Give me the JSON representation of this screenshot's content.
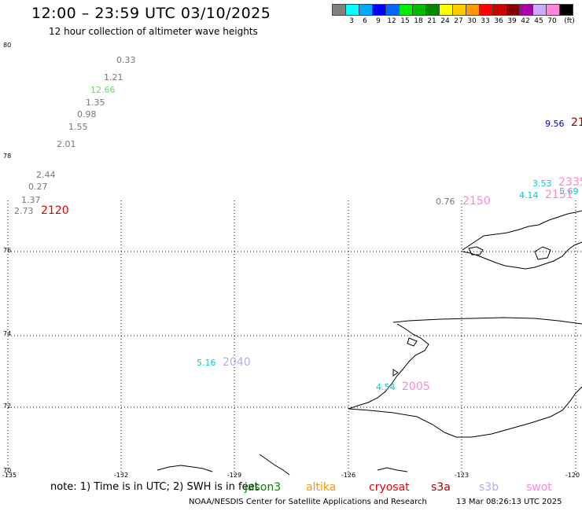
{
  "header": {
    "title": "12:00 – 23:59 UTC 03/10/2025",
    "subtitle": "12 hour collection of altimeter wave heights"
  },
  "colorbar": {
    "unit_label": "(ft)",
    "entries": [
      {
        "label": "",
        "color": "#808080"
      },
      {
        "label": "3",
        "color": "#00ffff"
      },
      {
        "label": "6",
        "color": "#00aaff"
      },
      {
        "label": "9",
        "color": "#0000ff"
      },
      {
        "label": "12",
        "color": "#0066ff"
      },
      {
        "label": "15",
        "color": "#00ee00"
      },
      {
        "label": "18",
        "color": "#00bb00"
      },
      {
        "label": "21",
        "color": "#008800"
      },
      {
        "label": "24",
        "color": "#ffff00"
      },
      {
        "label": "27",
        "color": "#ffcc00"
      },
      {
        "label": "30",
        "color": "#ff9900"
      },
      {
        "label": "33",
        "color": "#ff0000"
      },
      {
        "label": "36",
        "color": "#cc0000"
      },
      {
        "label": "39",
        "color": "#880000"
      },
      {
        "label": "42",
        "color": "#aa00aa"
      },
      {
        "label": "45",
        "color": "#ccaaff"
      },
      {
        "label": "70",
        "color": "#ff88dd"
      },
      {
        "label": "",
        "color": "#000000"
      }
    ]
  },
  "axes": {
    "lat_labels": [
      "80",
      "78",
      "76",
      "74",
      "72",
      "70"
    ],
    "lon_labels": [
      "-135",
      "-132",
      "-129",
      "-126",
      "-123",
      "-120"
    ]
  },
  "observations": [
    {
      "text": "0.33",
      "color": "#777777"
    },
    {
      "text": "1.21",
      "color": "#777777"
    },
    {
      "text": "12.66",
      "color": "#66dd66"
    },
    {
      "text": "1.35",
      "color": "#777777"
    },
    {
      "text": "0.98",
      "color": "#777777"
    },
    {
      "text": "1.55",
      "color": "#777777"
    },
    {
      "text": "2.01",
      "color": "#777777"
    },
    {
      "text": "2.44",
      "color": "#777777"
    },
    {
      "text": "0.27",
      "color": "#777777"
    },
    {
      "text": "1.37",
      "color": "#777777"
    },
    {
      "text": "2.73",
      "color": "#777777"
    },
    {
      "text": "0.76",
      "color": "#777777"
    },
    {
      "text": "9.56",
      "color": "#0000aa"
    },
    {
      "text": "3.53",
      "color": "#00cccc"
    },
    {
      "text": "4.14",
      "color": "#00cccc"
    },
    {
      "text": "5.69",
      "color": "#00cccc"
    },
    {
      "text": "5.16",
      "color": "#00cccc"
    },
    {
      "text": "4.54",
      "color": "#00cccc"
    }
  ],
  "pass_times": [
    {
      "text": "2120",
      "color": "#dd0000"
    },
    {
      "text": "2150",
      "color": "#ff88cc"
    },
    {
      "text": "21",
      "color": "#880000"
    },
    {
      "text": "2335",
      "color": "#ff88cc"
    },
    {
      "text": "2151",
      "color": "#ff88cc"
    },
    {
      "text": "2040",
      "color": "#bbaaee"
    },
    {
      "text": "2005",
      "color": "#ff88cc"
    }
  ],
  "footer": {
    "note": "note:  1) Time is in UTC; 2) SWH is in feet",
    "satellites": [
      {
        "name": "jason3",
        "color": "#008800"
      },
      {
        "name": "altika",
        "color": "#ff9900"
      },
      {
        "name": "cryosat",
        "color": "#ee0000"
      },
      {
        "name": "s3a",
        "color": "#aa0000"
      },
      {
        "name": "s3b",
        "color": "#bbaaee"
      },
      {
        "name": "swot",
        "color": "#ff88dd"
      }
    ],
    "credit": "NOAA/NESDIS Center for Satellite Applications and Research",
    "timestamp": "13 Mar 08:26:13 UTC 2025"
  }
}
